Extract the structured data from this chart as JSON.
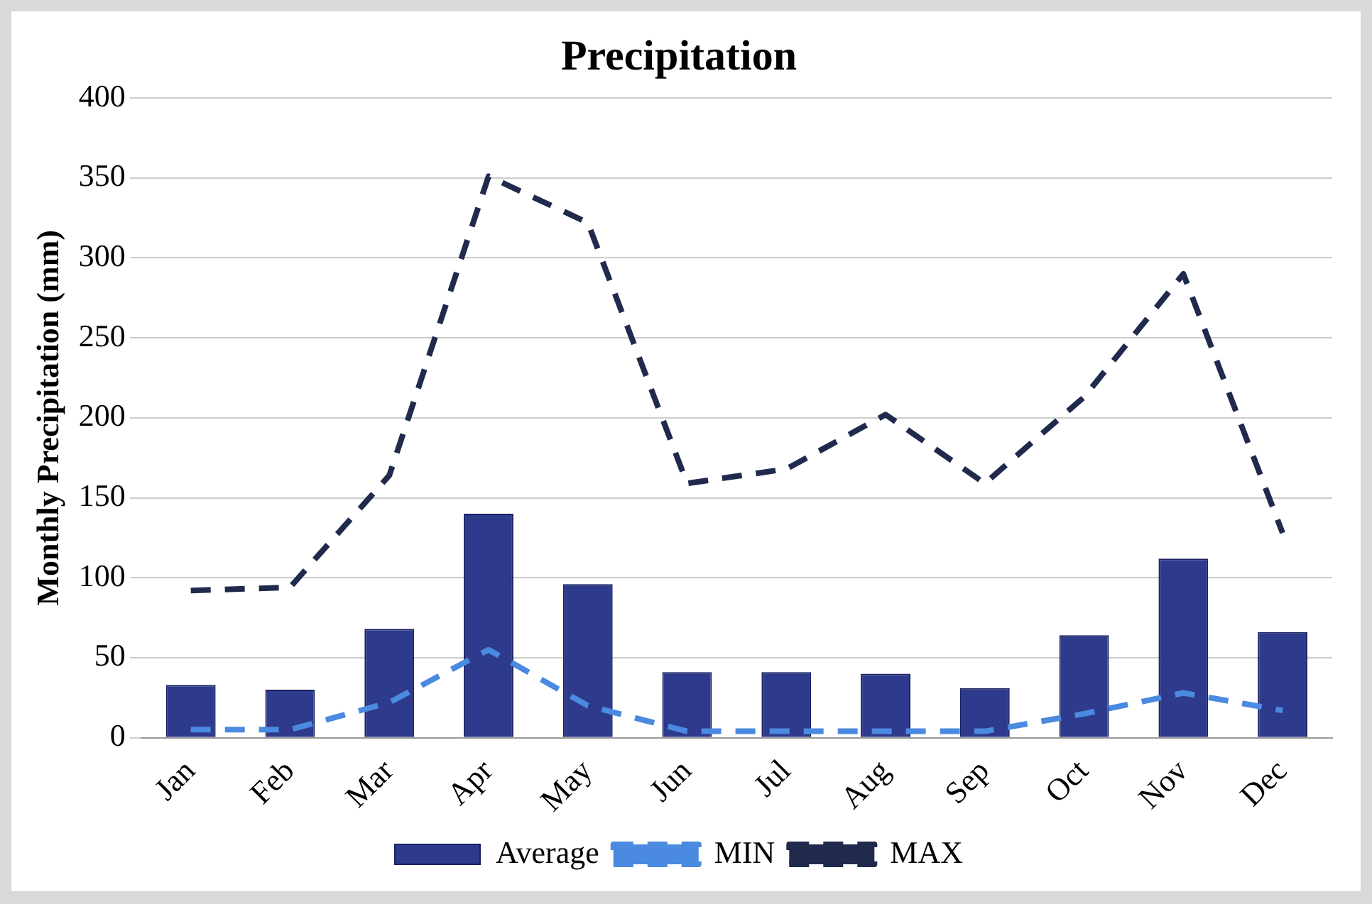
{
  "chart_data": {
    "type": "bar",
    "title": "Precipitation",
    "ylabel": "Monthly Precipitation (mm)",
    "categories": [
      "Jan",
      "Feb",
      "Mar",
      "Apr",
      "May",
      "Jun",
      "Jul",
      "Aug",
      "Sep",
      "Oct",
      "Nov",
      "Dec"
    ],
    "series": [
      {
        "name": "Average",
        "color": "#2e3a8c",
        "values": [
          33,
          30,
          68,
          140,
          96,
          41,
          41,
          40,
          31,
          64,
          112,
          66
        ]
      },
      {
        "name": "MIN",
        "type": "line",
        "line_style": "dashed",
        "color": "#4a8ae0",
        "values": [
          5,
          5,
          22,
          55,
          20,
          4,
          4,
          4,
          4,
          15,
          28,
          17
        ]
      },
      {
        "name": "MAX",
        "type": "line",
        "line_style": "dashed",
        "color": "#1f2a4d",
        "values": [
          92,
          94,
          164,
          351,
          322,
          159,
          168,
          202,
          159,
          213,
          290,
          128
        ]
      }
    ],
    "ylim": [
      0,
      400
    ],
    "yticks": [
      0,
      50,
      100,
      150,
      200,
      250,
      300,
      350,
      400
    ],
    "grid": "y",
    "legend": "bottom",
    "marker": "none"
  }
}
